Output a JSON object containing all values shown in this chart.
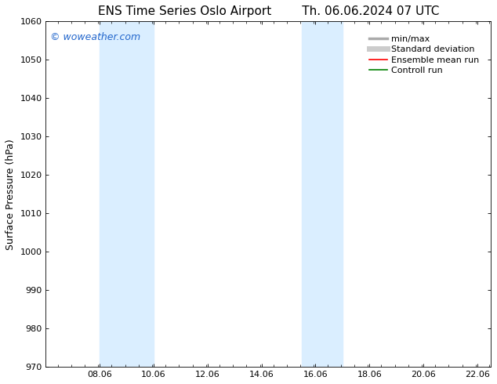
{
  "title_left": "ENS Time Series Oslo Airport",
  "title_right": "Th. 06.06.2024 07 UTC",
  "ylabel": "Surface Pressure (hPa)",
  "xlim": [
    6.06,
    22.56
  ],
  "ylim": [
    970,
    1060
  ],
  "yticks": [
    970,
    980,
    990,
    1000,
    1010,
    1020,
    1030,
    1040,
    1050,
    1060
  ],
  "xtick_labels": [
    "08.06",
    "10.06",
    "12.06",
    "14.06",
    "16.06",
    "18.06",
    "20.06",
    "22.06"
  ],
  "xtick_positions": [
    8.06,
    10.06,
    12.06,
    14.06,
    16.06,
    18.06,
    20.06,
    22.06
  ],
  "shaded_bands": [
    {
      "x_start": 8.06,
      "x_end": 9.06,
      "color": "#daeeff"
    },
    {
      "x_start": 9.06,
      "x_end": 10.06,
      "color": "#daeeff"
    },
    {
      "x_start": 15.56,
      "x_end": 16.06,
      "color": "#daeeff"
    },
    {
      "x_start": 16.06,
      "x_end": 17.06,
      "color": "#daeeff"
    }
  ],
  "watermark_text": "© woweather.com",
  "watermark_color": "#2266cc",
  "legend_items": [
    {
      "label": "min/max",
      "color": "#aaaaaa",
      "lw": 2.5
    },
    {
      "label": "Standard deviation",
      "color": "#cccccc",
      "lw": 5
    },
    {
      "label": "Ensemble mean run",
      "color": "red",
      "lw": 1.2
    },
    {
      "label": "Controll run",
      "color": "green",
      "lw": 1.2
    }
  ],
  "bg_color": "#ffffff",
  "plot_bg_color": "#ffffff",
  "title_fontsize": 11,
  "axis_label_fontsize": 9,
  "tick_fontsize": 8,
  "legend_fontsize": 8
}
